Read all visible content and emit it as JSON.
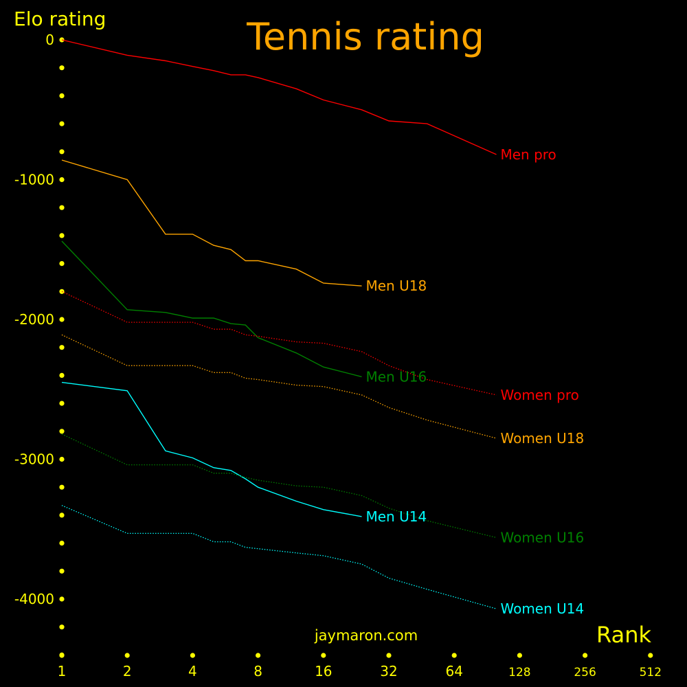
{
  "chart_data": {
    "type": "line",
    "title": "Tennis rating",
    "ylabel": "Elo rating",
    "xlabel": "Rank",
    "watermark": "jaymaron.com",
    "x_scale": "log2",
    "xlim": [
      1,
      512
    ],
    "ylim": [
      -4400,
      0
    ],
    "x_ticks": [
      1,
      2,
      4,
      8,
      16,
      32,
      64,
      128,
      256,
      512
    ],
    "x_tick_labels": [
      "1",
      "2",
      "4",
      "8",
      "16",
      "32",
      "64",
      "128",
      "256",
      "512"
    ],
    "y_ticks": [
      0,
      -1000,
      -2000,
      -3000,
      -4000
    ],
    "y_tick_labels": [
      "0",
      "-1000",
      "-2000",
      "-3000",
      "-4000"
    ],
    "y_minor_step": 200,
    "grid": false,
    "legend": "inline labels at line ends",
    "colors": {
      "background": "#000000",
      "axis": "#ffff00",
      "title": "#ffa500",
      "red": "#ff0000",
      "orange": "#ffa500",
      "green": "#008000",
      "cyan": "#00ffff"
    },
    "series": [
      {
        "name": "Men pro",
        "color": "#ff0000",
        "dash": "solid",
        "x": [
          1,
          2,
          3,
          4,
          5,
          6,
          7,
          8,
          12,
          16,
          24,
          32,
          48,
          100
        ],
        "y": [
          0,
          -110,
          -150,
          -190,
          -220,
          -250,
          -250,
          -270,
          -350,
          -430,
          -500,
          -580,
          -600,
          -820
        ]
      },
      {
        "name": "Men U18",
        "color": "#ffa500",
        "dash": "solid",
        "x": [
          1,
          2,
          3,
          4,
          5,
          6,
          7,
          8,
          12,
          16,
          24
        ],
        "y": [
          -860,
          -1000,
          -1390,
          -1390,
          -1470,
          -1500,
          -1580,
          -1580,
          -1640,
          -1740,
          -1760
        ]
      },
      {
        "name": "Men U16",
        "color": "#008000",
        "dash": "solid",
        "x": [
          1,
          2,
          3,
          4,
          5,
          6,
          7,
          8,
          12,
          16,
          24
        ],
        "y": [
          -1440,
          -1930,
          -1950,
          -1990,
          -1990,
          -2030,
          -2040,
          -2130,
          -2240,
          -2340,
          -2410
        ]
      },
      {
        "name": "Men U14",
        "color": "#00ffff",
        "dash": "solid",
        "x": [
          1,
          2,
          3,
          4,
          5,
          6,
          7,
          8,
          12,
          16,
          24
        ],
        "y": [
          -2450,
          -2510,
          -2940,
          -2990,
          -3060,
          -3080,
          -3140,
          -3200,
          -3300,
          -3360,
          -3410
        ]
      },
      {
        "name": "Women pro",
        "color": "#ff0000",
        "dash": "dotted",
        "x": [
          1,
          2,
          3,
          4,
          5,
          6,
          7,
          8,
          12,
          16,
          24,
          32,
          48,
          100
        ],
        "y": [
          -1800,
          -2020,
          -2020,
          -2020,
          -2070,
          -2070,
          -2110,
          -2120,
          -2160,
          -2170,
          -2230,
          -2330,
          -2430,
          -2540
        ]
      },
      {
        "name": "Women U18",
        "color": "#ffa500",
        "dash": "dotted",
        "x": [
          1,
          2,
          3,
          4,
          5,
          6,
          7,
          8,
          12,
          16,
          24,
          32,
          48,
          100
        ],
        "y": [
          -2110,
          -2330,
          -2330,
          -2330,
          -2380,
          -2380,
          -2420,
          -2430,
          -2470,
          -2480,
          -2540,
          -2630,
          -2720,
          -2850
        ]
      },
      {
        "name": "Women U16",
        "color": "#008000",
        "dash": "dotted",
        "x": [
          1,
          2,
          3,
          4,
          5,
          6,
          7,
          8,
          12,
          16,
          24,
          32,
          48,
          100
        ],
        "y": [
          -2820,
          -3040,
          -3040,
          -3040,
          -3100,
          -3100,
          -3130,
          -3150,
          -3190,
          -3200,
          -3260,
          -3350,
          -3440,
          -3560
        ]
      },
      {
        "name": "Women U14",
        "color": "#00ffff",
        "dash": "dotted",
        "x": [
          1,
          2,
          3,
          4,
          5,
          6,
          7,
          8,
          12,
          16,
          24,
          32,
          48,
          100
        ],
        "y": [
          -3330,
          -3530,
          -3530,
          -3530,
          -3590,
          -3590,
          -3630,
          -3640,
          -3670,
          -3690,
          -3750,
          -3850,
          -3930,
          -4070
        ]
      }
    ]
  }
}
